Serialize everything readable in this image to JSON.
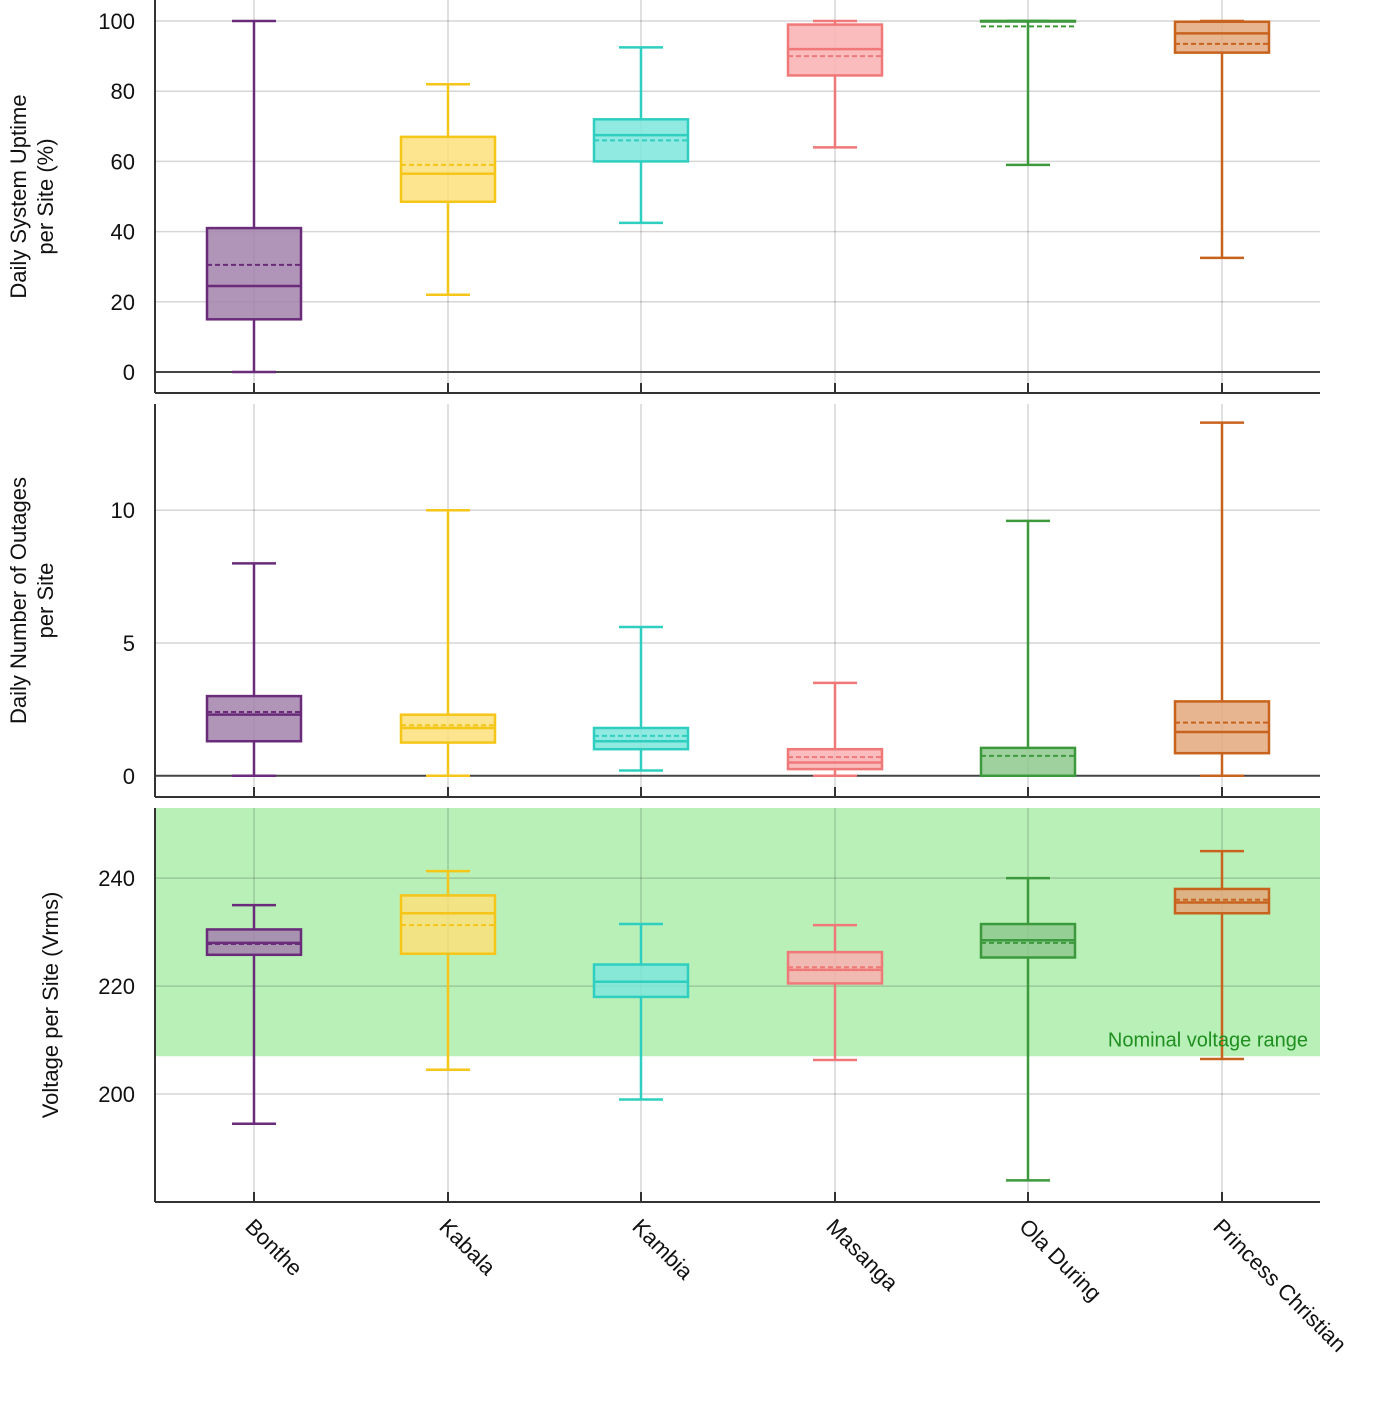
{
  "chart_data": {
    "type": "box",
    "categories": [
      "Bonthe",
      "Kabala",
      "Kambia",
      "Masanga",
      "Ola During",
      "Princess Christian"
    ],
    "colors": [
      "#6a2c7a",
      "#f5c518",
      "#2ecfc0",
      "#f07878",
      "#3c9a3c",
      "#c8631e"
    ],
    "fill_colors": [
      "#a383ad",
      "#fbe07a",
      "#7ee6dc",
      "#f9b0b0",
      "#8ec98e",
      "#e3a87c"
    ],
    "panels": [
      {
        "ylabel_lines": [
          "Daily System Uptime",
          "per Site (%)"
        ],
        "ylim": [
          -6,
          106
        ],
        "yticks": [
          0,
          20,
          40,
          60,
          80,
          100
        ],
        "grid": true,
        "zero_line": true,
        "boxes": [
          {
            "min": 0,
            "q1": 15,
            "median": 24.5,
            "mean": 30.5,
            "q3": 41,
            "max": 100
          },
          {
            "min": 22,
            "q1": 48.5,
            "median": 56.5,
            "mean": 59,
            "q3": 67,
            "max": 82
          },
          {
            "min": 42.5,
            "q1": 60,
            "median": 67.5,
            "mean": 66,
            "q3": 72,
            "max": 92.5
          },
          {
            "min": 64,
            "q1": 84.5,
            "median": 92,
            "mean": 90,
            "q3": 99,
            "max": 100
          },
          {
            "min": 59,
            "q1": 100,
            "median": 100,
            "mean": 98.5,
            "q3": 100,
            "max": 100
          },
          {
            "min": 32.5,
            "q1": 91,
            "median": 96.5,
            "mean": 93.5,
            "q3": 99.8,
            "max": 100
          }
        ]
      },
      {
        "ylabel_lines": [
          "Daily Number of Outages",
          "per Site"
        ],
        "ylim": [
          -0.8,
          14
        ],
        "yticks": [
          0,
          5,
          10
        ],
        "grid": true,
        "zero_line": true,
        "boxes": [
          {
            "min": 0,
            "q1": 1.3,
            "median": 2.3,
            "mean": 2.4,
            "q3": 3.0,
            "max": 8.0
          },
          {
            "min": 0,
            "q1": 1.25,
            "median": 1.8,
            "mean": 1.9,
            "q3": 2.3,
            "max": 10.0
          },
          {
            "min": 0.2,
            "q1": 1.0,
            "median": 1.3,
            "mean": 1.5,
            "q3": 1.8,
            "max": 5.6
          },
          {
            "min": 0,
            "q1": 0.25,
            "median": 0.5,
            "mean": 0.7,
            "q3": 1.0,
            "max": 3.5
          },
          {
            "min": 0,
            "q1": 0,
            "median": 0,
            "mean": 0.75,
            "q3": 1.05,
            "max": 9.6
          },
          {
            "min": 0,
            "q1": 0.85,
            "median": 1.65,
            "mean": 2.0,
            "q3": 2.8,
            "max": 13.3
          }
        ]
      },
      {
        "ylabel_lines": [
          "Voltage per Site (Vrms)"
        ],
        "ylim": [
          180,
          253
        ],
        "yticks": [
          200,
          220,
          240
        ],
        "grid": true,
        "zero_line": false,
        "band": {
          "from": 207,
          "to": 253,
          "label": "Nominal voltage range",
          "color": "#b8f0b8"
        },
        "boxes": [
          {
            "min": 194.5,
            "q1": 225.8,
            "median": 228,
            "mean": 227.8,
            "q3": 230.5,
            "max": 235
          },
          {
            "min": 204.5,
            "q1": 226,
            "median": 233.5,
            "mean": 231.3,
            "q3": 236.8,
            "max": 241.3
          },
          {
            "min": 199,
            "q1": 218,
            "median": 220.8,
            "mean": 220.8,
            "q3": 224,
            "max": 231.5
          },
          {
            "min": 206.3,
            "q1": 220.5,
            "median": 223,
            "mean": 223.5,
            "q3": 226.3,
            "max": 231.3
          },
          {
            "min": 184,
            "q1": 225.3,
            "median": 228.5,
            "mean": 228,
            "q3": 231.5,
            "max": 240
          },
          {
            "min": 206.5,
            "q1": 233.5,
            "median": 235.5,
            "mean": 236,
            "q3": 238,
            "max": 245
          }
        ]
      }
    ]
  }
}
